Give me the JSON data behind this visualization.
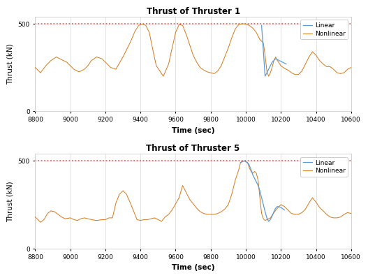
{
  "title1": "Thrust of Thruster 1",
  "title2": "Thrust of Thruster 5",
  "xlabel": "Time (sec)",
  "ylabel": "Thrust (kN)",
  "xlim": [
    8800,
    10600
  ],
  "ylim": [
    0,
    540
  ],
  "yticks": [
    0,
    500
  ],
  "xticks": [
    8800,
    9000,
    9200,
    9400,
    9600,
    9800,
    10000,
    10200,
    10400,
    10600
  ],
  "dashed_line_y": 500,
  "dashed_color": "#e05050",
  "linear_color": "#5b9bd5",
  "nonlinear_color": "#d4781a",
  "legend_labels": [
    "Linear",
    "Nonlinear"
  ],
  "background_color": "#ffffff",
  "grid_color": "#d8d8d8"
}
